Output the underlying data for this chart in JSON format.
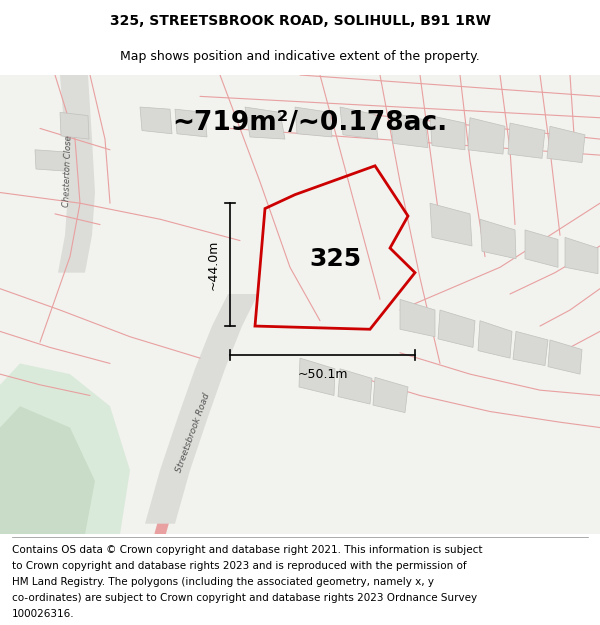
{
  "title": "325, STREETSBROOK ROAD, SOLIHULL, B91 1RW",
  "subtitle": "Map shows position and indicative extent of the property.",
  "area_text": "~719m²/~0.178ac.",
  "label_325": "325",
  "dim_vertical": "~44.0m",
  "dim_horizontal": "~50.1m",
  "road_label": "Streetsbrook Road",
  "close_label": "Chesterton Close",
  "footer_lines": [
    "Contains OS data © Crown copyright and database right 2021. This information is subject",
    "to Crown copyright and database rights 2023 and is reproduced with the permission of",
    "HM Land Registry. The polygons (including the associated geometry, namely x, y",
    "co-ordinates) are subject to Crown copyright and database rights 2023 Ordnance Survey",
    "100026316."
  ],
  "map_bg": "#f2f2ee",
  "red_line": "#cc0000",
  "title_fontsize": 10,
  "subtitle_fontsize": 9,
  "footer_fontsize": 7.5
}
